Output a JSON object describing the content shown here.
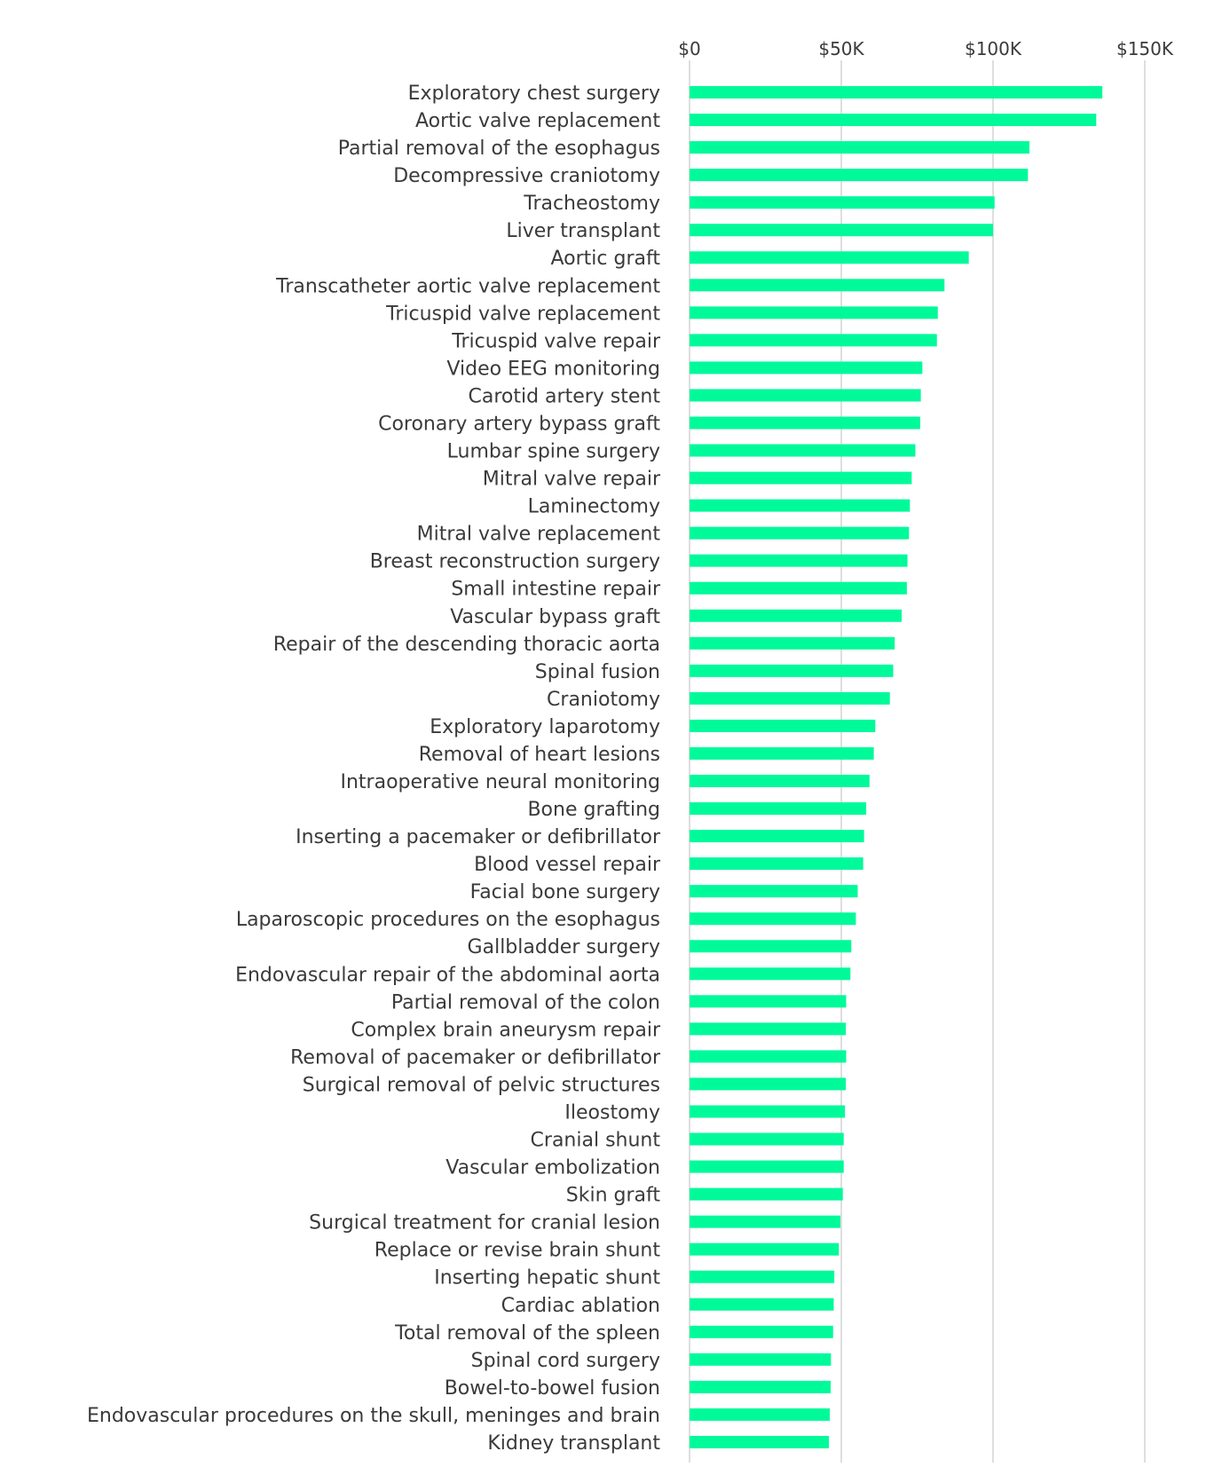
{
  "chart_data": {
    "type": "bar",
    "orientation": "horizontal",
    "title": "",
    "xlabel": "",
    "ylabel": "",
    "xlim": [
      0,
      150000
    ],
    "x_ticks": [
      0,
      50000,
      100000,
      150000
    ],
    "x_tick_labels": [
      "$0",
      "$50K",
      "$100K",
      "$150K"
    ],
    "grid": "vertical",
    "bar_color": "#00fa9a",
    "categories": [
      "Exploratory chest surgery",
      "Aortic valve replacement",
      "Partial removal of the esophagus",
      "Decompressive craniotomy",
      "Tracheostomy",
      "Liver transplant",
      "Aortic graft",
      "Transcatheter aortic valve replacement",
      "Tricuspid valve replacement",
      "Tricuspid valve repair",
      "Video EEG monitoring",
      "Carotid artery stent",
      "Coronary artery bypass graft",
      "Lumbar spine surgery",
      "Mitral valve repair",
      "Laminectomy",
      "Mitral valve replacement",
      "Breast reconstruction surgery",
      "Small intestine repair",
      "Vascular bypass graft",
      "Repair of the descending thoracic aorta",
      "Spinal fusion",
      "Craniotomy",
      "Exploratory laparotomy",
      "Removal of heart lesions",
      "Intraoperative neural monitoring",
      "Bone grafting",
      "Inserting a pacemaker or defibrillator",
      "Blood vessel repair",
      "Facial bone surgery",
      "Laparoscopic procedures on the esophagus",
      "Gallbladder surgery",
      "Endovascular repair of the abdominal aorta",
      "Partial removal of the colon",
      "Complex brain aneurysm repair",
      "Removal of pacemaker or defibrillator",
      "Surgical removal of pelvic structures",
      "Ileostomy",
      "Cranial shunt",
      "Vascular embolization",
      "Skin graft",
      "Surgical treatment for cranial lesion",
      "Replace or revise brain shunt",
      "Inserting hepatic shunt",
      "Cardiac ablation",
      "Total removal of the spleen",
      "Spinal cord surgery",
      "Bowel-to-bowel fusion",
      "Endovascular procedures on the skull, meninges and brain",
      "Kidney transplant"
    ],
    "values": [
      136000,
      134000,
      112000,
      111500,
      100500,
      100000,
      92000,
      84000,
      81800,
      81500,
      76700,
      76200,
      76000,
      74400,
      73200,
      72600,
      72300,
      71800,
      71600,
      69900,
      67600,
      67100,
      66000,
      61200,
      60700,
      59300,
      58200,
      57500,
      57200,
      55400,
      54800,
      53300,
      53000,
      51600,
      51500,
      51600,
      51500,
      51200,
      50800,
      50800,
      50500,
      49700,
      49200,
      47700,
      47500,
      47300,
      46600,
      46500,
      46200,
      45900
    ]
  }
}
